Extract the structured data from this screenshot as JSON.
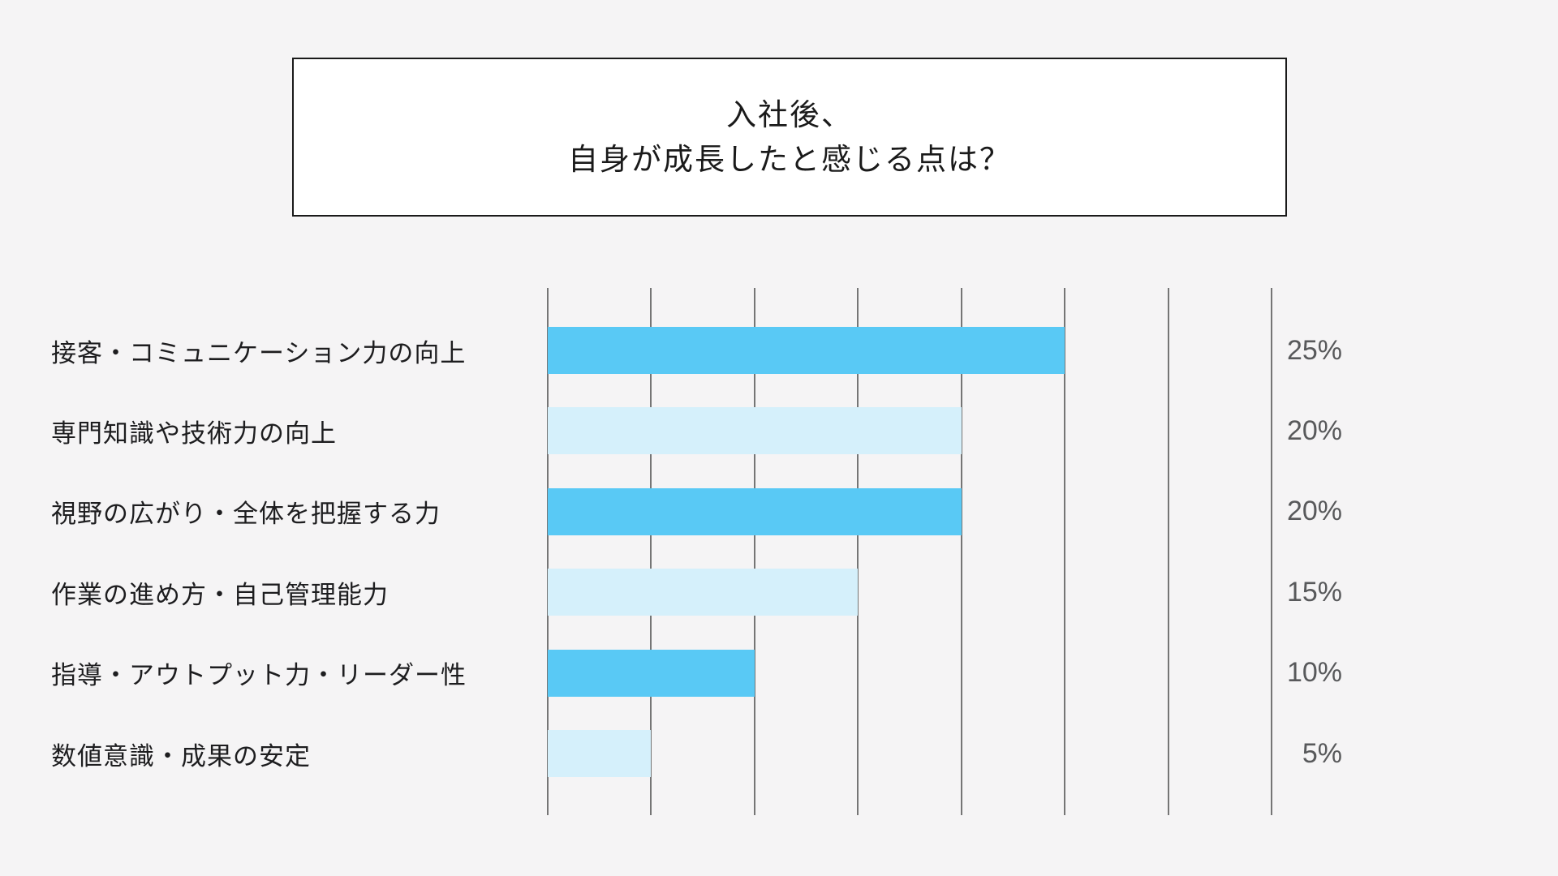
{
  "title": {
    "line1": "入社後、",
    "line2": "自身が成長したと感じる点は？"
  },
  "colors": {
    "background": "#F5F4F5",
    "title_box_bg": "#FFFFFF",
    "title_box_border": "#1A1A1A",
    "title_text": "#1A1A1A",
    "label_text": "#1D1D1F",
    "value_text": "#58595B",
    "gridline": "#757575",
    "bar_bright": "#59C9F5",
    "bar_pale": "#D5F0FB"
  },
  "chart_data": {
    "type": "bar",
    "orientation": "horizontal",
    "title": "入社後、自身が成長したと感じる点は？",
    "categories": [
      "接客・コミュニケーション力の向上",
      "専門知識や技術力の向上",
      "視野の広がり・全体を把握する力",
      "作業の進め方・自己管理能力",
      "指導・アウトプット力・リーダー性",
      "数値意識・成果の安定"
    ],
    "values": [
      25,
      20,
      20,
      15,
      10,
      5
    ],
    "value_labels": [
      "25%",
      "20%",
      "20%",
      "15%",
      "10%",
      "5%"
    ],
    "unit": "%",
    "xlim": [
      0,
      35
    ],
    "gridline_interval": 5,
    "gridlines_shown": 8,
    "grid": "vertical-lines-only",
    "legend": "none",
    "bar_color_pattern": [
      "#59C9F5",
      "#D5F0FB",
      "#59C9F5",
      "#D5F0FB",
      "#59C9F5",
      "#D5F0FB"
    ]
  }
}
